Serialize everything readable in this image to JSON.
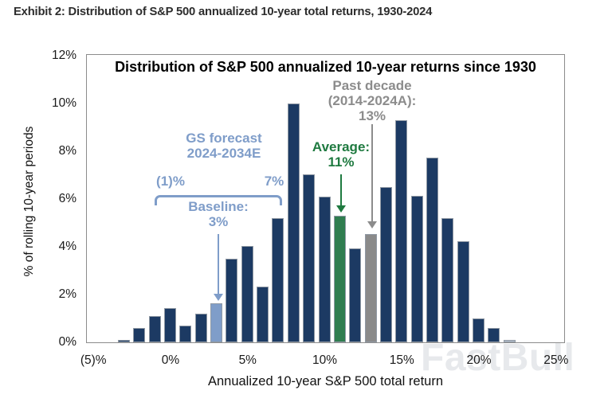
{
  "exhibit_title": "Exhibit 2: Distribution of S&P 500 annualized 10-year total returns, 1930-2024",
  "watermark": "FastBull",
  "chart_data": {
    "type": "bar",
    "title": "Distribution of S&P 500 annualized 10-year returns since 1930",
    "xlabel": "Annualized 10-year S&P 500 total return",
    "ylabel": "% of rolling 10-year periods",
    "xlim": [
      -5.4,
      25.5
    ],
    "ylim": [
      0,
      12
    ],
    "grid": false,
    "legend": "none",
    "x_ticks": [
      {
        "value": -5,
        "label": "(5)%"
      },
      {
        "value": 0,
        "label": "0%"
      },
      {
        "value": 5,
        "label": "5%"
      },
      {
        "value": 10,
        "label": "10%"
      },
      {
        "value": 15,
        "label": "15%"
      },
      {
        "value": 20,
        "label": "20%"
      },
      {
        "value": 25,
        "label": "25%"
      }
    ],
    "y_ticks": [
      {
        "value": 0,
        "label": "0%"
      },
      {
        "value": 2,
        "label": "2%"
      },
      {
        "value": 4,
        "label": "4%"
      },
      {
        "value": 6,
        "label": "6%"
      },
      {
        "value": 8,
        "label": "8%"
      },
      {
        "value": 10,
        "label": "10%"
      },
      {
        "value": 12,
        "label": "12%"
      }
    ],
    "bars": [
      {
        "x": -3,
        "value": 0.1,
        "role": "normal"
      },
      {
        "x": -2,
        "value": 0.6,
        "role": "normal"
      },
      {
        "x": -1,
        "value": 1.1,
        "role": "normal"
      },
      {
        "x": 0,
        "value": 1.45,
        "role": "normal"
      },
      {
        "x": 1,
        "value": 0.7,
        "role": "normal"
      },
      {
        "x": 2,
        "value": 1.2,
        "role": "normal"
      },
      {
        "x": 3,
        "value": 1.65,
        "role": "baseline"
      },
      {
        "x": 4,
        "value": 3.5,
        "role": "normal"
      },
      {
        "x": 5,
        "value": 4.05,
        "role": "normal"
      },
      {
        "x": 6,
        "value": 2.35,
        "role": "normal"
      },
      {
        "x": 7,
        "value": 5.2,
        "role": "normal"
      },
      {
        "x": 8,
        "value": 10.0,
        "role": "normal"
      },
      {
        "x": 9,
        "value": 7.05,
        "role": "normal"
      },
      {
        "x": 10,
        "value": 6.1,
        "role": "normal"
      },
      {
        "x": 11,
        "value": 5.3,
        "role": "average"
      },
      {
        "x": 12,
        "value": 3.95,
        "role": "normal"
      },
      {
        "x": 13,
        "value": 4.55,
        "role": "past_decade"
      },
      {
        "x": 14,
        "value": 6.5,
        "role": "normal"
      },
      {
        "x": 15,
        "value": 9.3,
        "role": "normal"
      },
      {
        "x": 16,
        "value": 6.15,
        "role": "normal"
      },
      {
        "x": 17,
        "value": 7.75,
        "role": "normal"
      },
      {
        "x": 18,
        "value": 5.2,
        "role": "normal"
      },
      {
        "x": 19,
        "value": 4.25,
        "role": "normal"
      },
      {
        "x": 20,
        "value": 1.0,
        "role": "normal"
      },
      {
        "x": 21,
        "value": 0.6,
        "role": "normal"
      },
      {
        "x": 22,
        "value": 0.1,
        "role": "faint"
      }
    ],
    "colors": {
      "normal": "#1c3a63",
      "baseline": "#7f9dc9",
      "average": "#2f7d4f",
      "past_decade": "#8a8a8a",
      "faint": "#b9c4d1",
      "annotation_blue": "#7f9dc9",
      "annotation_green": "#1f7a40",
      "annotation_gray": "#8c8c8c"
    },
    "annotations": {
      "gs_forecast": {
        "line1": "GS forecast",
        "line2": "2024-2034E",
        "range_low": "(1)%",
        "range_high": "7%",
        "baseline_label": "Baseline:",
        "baseline_value": "3%"
      },
      "average": {
        "label": "Average:",
        "value": "11%"
      },
      "past_decade": {
        "line1": "Past decade",
        "line2": "(2014-2024A):",
        "value": "13%"
      }
    }
  }
}
